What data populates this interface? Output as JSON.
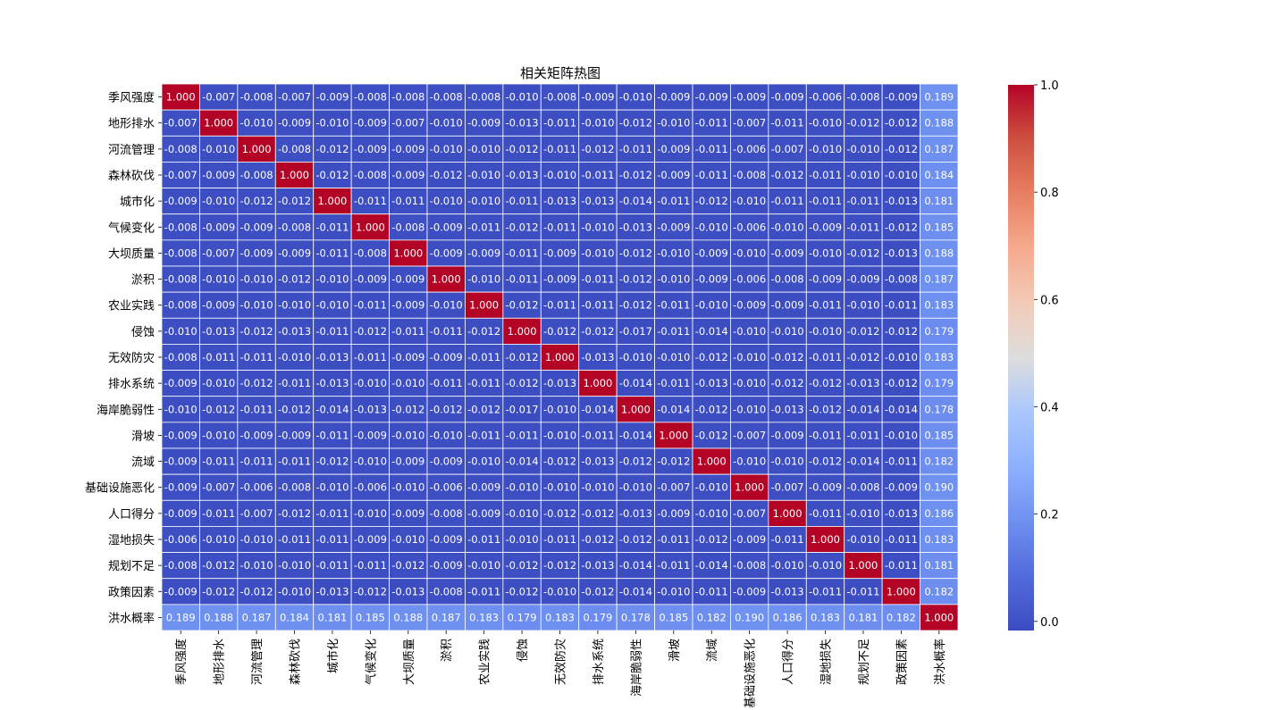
{
  "chart_data": {
    "type": "heatmap",
    "title": "相关矩阵热图",
    "xlabel": "",
    "ylabel": "",
    "labels": [
      "季风强度",
      "地形排水",
      "河流管理",
      "森林砍伐",
      "城市化",
      "气候变化",
      "大坝质量",
      "淤积",
      "农业实践",
      "侵蚀",
      "无效防灾",
      "排水系统",
      "海岸脆弱性",
      "滑坡",
      "流域",
      "基础设施恶化",
      "人口得分",
      "湿地损失",
      "规划不足",
      "政策因素",
      "洪水概率"
    ],
    "values": [
      [
        "1.000",
        "-0.007",
        "-0.008",
        "-0.007",
        "-0.009",
        "-0.008",
        "-0.008",
        "-0.008",
        "-0.008",
        "-0.010",
        "-0.008",
        "-0.009",
        "-0.010",
        "-0.009",
        "-0.009",
        "-0.009",
        "-0.009",
        "-0.006",
        "-0.008",
        "-0.009",
        "0.189"
      ],
      [
        "-0.007",
        "1.000",
        "-0.010",
        "-0.009",
        "-0.010",
        "-0.009",
        "-0.007",
        "-0.010",
        "-0.009",
        "-0.013",
        "-0.011",
        "-0.010",
        "-0.012",
        "-0.010",
        "-0.011",
        "-0.007",
        "-0.011",
        "-0.010",
        "-0.012",
        "-0.012",
        "0.188"
      ],
      [
        "-0.008",
        "-0.010",
        "1.000",
        "-0.008",
        "-0.012",
        "-0.009",
        "-0.009",
        "-0.010",
        "-0.010",
        "-0.012",
        "-0.011",
        "-0.012",
        "-0.011",
        "-0.009",
        "-0.011",
        "-0.006",
        "-0.007",
        "-0.010",
        "-0.010",
        "-0.012",
        "0.187"
      ],
      [
        "-0.007",
        "-0.009",
        "-0.008",
        "1.000",
        "-0.012",
        "-0.008",
        "-0.009",
        "-0.012",
        "-0.010",
        "-0.013",
        "-0.010",
        "-0.011",
        "-0.012",
        "-0.009",
        "-0.011",
        "-0.008",
        "-0.012",
        "-0.011",
        "-0.010",
        "-0.010",
        "0.184"
      ],
      [
        "-0.009",
        "-0.010",
        "-0.012",
        "-0.012",
        "1.000",
        "-0.011",
        "-0.011",
        "-0.010",
        "-0.010",
        "-0.011",
        "-0.013",
        "-0.013",
        "-0.014",
        "-0.011",
        "-0.012",
        "-0.010",
        "-0.011",
        "-0.011",
        "-0.011",
        "-0.013",
        "0.181"
      ],
      [
        "-0.008",
        "-0.009",
        "-0.009",
        "-0.008",
        "-0.011",
        "1.000",
        "-0.008",
        "-0.009",
        "-0.011",
        "-0.012",
        "-0.011",
        "-0.010",
        "-0.013",
        "-0.009",
        "-0.010",
        "-0.006",
        "-0.010",
        "-0.009",
        "-0.011",
        "-0.012",
        "0.185"
      ],
      [
        "-0.008",
        "-0.007",
        "-0.009",
        "-0.009",
        "-0.011",
        "-0.008",
        "1.000",
        "-0.009",
        "-0.009",
        "-0.011",
        "-0.009",
        "-0.010",
        "-0.012",
        "-0.010",
        "-0.009",
        "-0.010",
        "-0.009",
        "-0.010",
        "-0.012",
        "-0.013",
        "0.188"
      ],
      [
        "-0.008",
        "-0.010",
        "-0.010",
        "-0.012",
        "-0.010",
        "-0.009",
        "-0.009",
        "1.000",
        "-0.010",
        "-0.011",
        "-0.009",
        "-0.011",
        "-0.012",
        "-0.010",
        "-0.009",
        "-0.006",
        "-0.008",
        "-0.009",
        "-0.009",
        "-0.008",
        "0.187"
      ],
      [
        "-0.008",
        "-0.009",
        "-0.010",
        "-0.010",
        "-0.010",
        "-0.011",
        "-0.009",
        "-0.010",
        "1.000",
        "-0.012",
        "-0.011",
        "-0.011",
        "-0.012",
        "-0.011",
        "-0.010",
        "-0.009",
        "-0.009",
        "-0.011",
        "-0.010",
        "-0.011",
        "0.183"
      ],
      [
        "-0.010",
        "-0.013",
        "-0.012",
        "-0.013",
        "-0.011",
        "-0.012",
        "-0.011",
        "-0.011",
        "-0.012",
        "1.000",
        "-0.012",
        "-0.012",
        "-0.017",
        "-0.011",
        "-0.014",
        "-0.010",
        "-0.010",
        "-0.010",
        "-0.012",
        "-0.012",
        "0.179"
      ],
      [
        "-0.008",
        "-0.011",
        "-0.011",
        "-0.010",
        "-0.013",
        "-0.011",
        "-0.009",
        "-0.009",
        "-0.011",
        "-0.012",
        "1.000",
        "-0.013",
        "-0.010",
        "-0.010",
        "-0.012",
        "-0.010",
        "-0.012",
        "-0.011",
        "-0.012",
        "-0.010",
        "0.183"
      ],
      [
        "-0.009",
        "-0.010",
        "-0.012",
        "-0.011",
        "-0.013",
        "-0.010",
        "-0.010",
        "-0.011",
        "-0.011",
        "-0.012",
        "-0.013",
        "1.000",
        "-0.014",
        "-0.011",
        "-0.013",
        "-0.010",
        "-0.012",
        "-0.012",
        "-0.013",
        "-0.012",
        "0.179"
      ],
      [
        "-0.010",
        "-0.012",
        "-0.011",
        "-0.012",
        "-0.014",
        "-0.013",
        "-0.012",
        "-0.012",
        "-0.012",
        "-0.017",
        "-0.010",
        "-0.014",
        "1.000",
        "-0.014",
        "-0.012",
        "-0.010",
        "-0.013",
        "-0.012",
        "-0.014",
        "-0.014",
        "0.178"
      ],
      [
        "-0.009",
        "-0.010",
        "-0.009",
        "-0.009",
        "-0.011",
        "-0.009",
        "-0.010",
        "-0.010",
        "-0.011",
        "-0.011",
        "-0.010",
        "-0.011",
        "-0.014",
        "1.000",
        "-0.012",
        "-0.007",
        "-0.009",
        "-0.011",
        "-0.011",
        "-0.010",
        "0.185"
      ],
      [
        "-0.009",
        "-0.011",
        "-0.011",
        "-0.011",
        "-0.012",
        "-0.010",
        "-0.009",
        "-0.009",
        "-0.010",
        "-0.014",
        "-0.012",
        "-0.013",
        "-0.012",
        "-0.012",
        "1.000",
        "-0.010",
        "-0.010",
        "-0.012",
        "-0.014",
        "-0.011",
        "0.182"
      ],
      [
        "-0.009",
        "-0.007",
        "-0.006",
        "-0.008",
        "-0.010",
        "-0.006",
        "-0.010",
        "-0.006",
        "-0.009",
        "-0.010",
        "-0.010",
        "-0.010",
        "-0.010",
        "-0.007",
        "-0.010",
        "1.000",
        "-0.007",
        "-0.009",
        "-0.008",
        "-0.009",
        "0.190"
      ],
      [
        "-0.009",
        "-0.011",
        "-0.007",
        "-0.012",
        "-0.011",
        "-0.010",
        "-0.009",
        "-0.008",
        "-0.009",
        "-0.010",
        "-0.012",
        "-0.012",
        "-0.013",
        "-0.009",
        "-0.010",
        "-0.007",
        "1.000",
        "-0.011",
        "-0.010",
        "-0.013",
        "0.186"
      ],
      [
        "-0.006",
        "-0.010",
        "-0.010",
        "-0.011",
        "-0.011",
        "-0.009",
        "-0.010",
        "-0.009",
        "-0.011",
        "-0.010",
        "-0.011",
        "-0.012",
        "-0.012",
        "-0.011",
        "-0.012",
        "-0.009",
        "-0.011",
        "1.000",
        "-0.010",
        "-0.011",
        "0.183"
      ],
      [
        "-0.008",
        "-0.012",
        "-0.010",
        "-0.010",
        "-0.011",
        "-0.011",
        "-0.012",
        "-0.009",
        "-0.010",
        "-0.012",
        "-0.012",
        "-0.013",
        "-0.014",
        "-0.011",
        "-0.014",
        "-0.008",
        "-0.010",
        "-0.010",
        "1.000",
        "-0.011",
        "0.181"
      ],
      [
        "-0.009",
        "-0.012",
        "-0.012",
        "-0.010",
        "-0.013",
        "-0.012",
        "-0.013",
        "-0.008",
        "-0.011",
        "-0.012",
        "-0.010",
        "-0.012",
        "-0.014",
        "-0.010",
        "-0.011",
        "-0.009",
        "-0.013",
        "-0.011",
        "-0.011",
        "1.000",
        "0.182"
      ],
      [
        "0.189",
        "0.188",
        "0.187",
        "0.184",
        "0.181",
        "0.185",
        "0.188",
        "0.187",
        "0.183",
        "0.179",
        "0.183",
        "0.179",
        "0.178",
        "0.185",
        "0.182",
        "0.190",
        "0.186",
        "0.183",
        "0.181",
        "0.182",
        "1.000"
      ]
    ],
    "colormap": "coolwarm",
    "vmin": -0.017,
    "vmax": 1.0,
    "colorbar_ticks": [
      "0.0",
      "0.2",
      "0.4",
      "0.6",
      "0.8",
      "1.0"
    ],
    "colorbar_tick_values": [
      0.0,
      0.2,
      0.4,
      0.6,
      0.8,
      1.0
    ],
    "grid_line_color": "#ffffff"
  }
}
